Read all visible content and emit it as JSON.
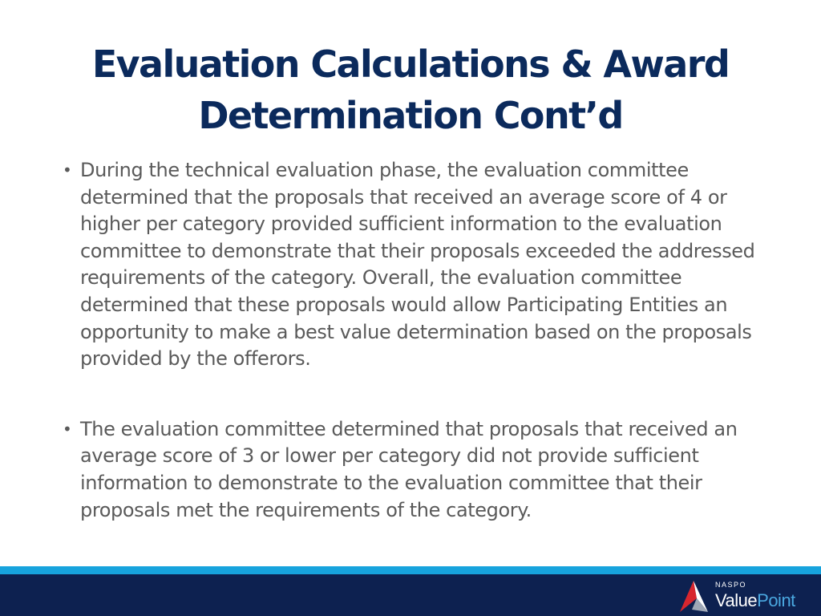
{
  "title": {
    "line1": "Evaluation Calculations & Award",
    "line2": "Determination Cont’d"
  },
  "bullets": [
    {
      "marker": "•",
      "text": "During the technical evaluation phase, the evaluation committee determined that the proposals that received an average score of 4 or higher per category provided sufficient information to the evaluation committee to demonstrate that their proposals exceeded the addressed requirements of the category.  Overall, the evaluation committee determined that these proposals would allow Participating Entities an opportunity to make a best value determination based on the proposals provided by the offerors."
    },
    {
      "marker": "•",
      "text": "The evaluation committee determined that proposals that received an average score of 3 or lower per category did not provide sufficient information to demonstrate to the evaluation committee that their proposals met the requirements of the category."
    }
  ],
  "footer": {
    "logo_small": "NASPO",
    "logo_value": "Value",
    "logo_point": "Point",
    "logo_icon": "naspo-arrow-icon",
    "colors": {
      "band": "#0d2150",
      "stripe": "#17a3dd",
      "title": "#0b2a5c",
      "body_text": "#5a5a5a",
      "logo_red": "#d8262e",
      "logo_blue": "#4aa8e0"
    }
  }
}
